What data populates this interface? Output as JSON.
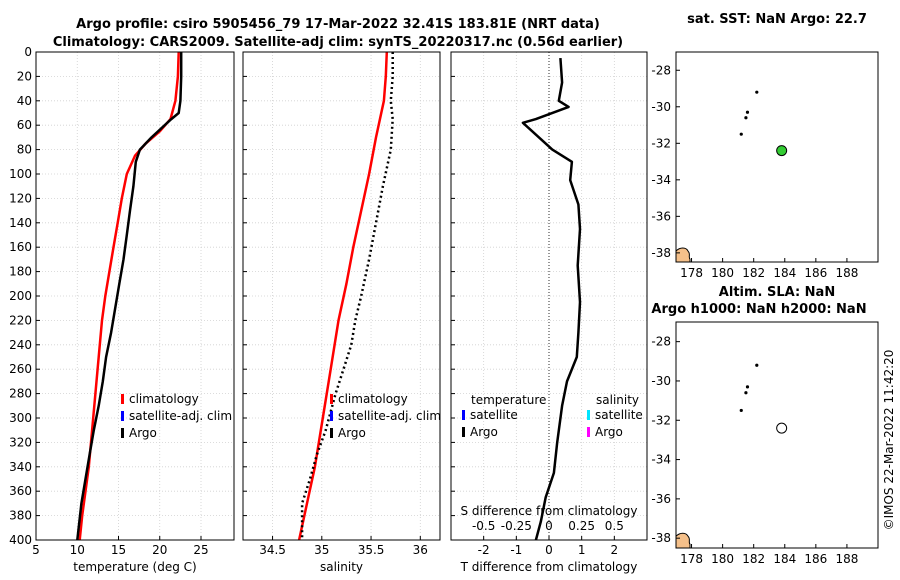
{
  "title": {
    "line1": "Argo profile: csiro 5905456_79 17-Mar-2022 32.41S 183.81E (NRT data)",
    "line2": "Climatology: CARS2009. Satellite-adj clim: synTS_20220317.nc (0.56d earlier)"
  },
  "credit": "©IMOS 22-Mar-2022 11:42:20",
  "colors": {
    "climatology": "#ff0000",
    "satellite_clim": "#0000ff",
    "argo": "#000000",
    "sat_salinity": "#00e5ff",
    "argo_salinity": "#ff00ff",
    "sst_marker": "#33cc33",
    "land": "#f5c08a"
  },
  "chart_data": [
    {
      "type": "line",
      "id": "temperature",
      "xlabel": "temperature (deg C)",
      "ylabel": "",
      "xlim": [
        5,
        29
      ],
      "ylim": [
        400,
        0
      ],
      "y_reversed": true,
      "xticks": [
        "5",
        "10",
        "15",
        "20",
        "25"
      ],
      "xtick_values": [
        5,
        10,
        15,
        20,
        25
      ],
      "yticks": [
        "0",
        "20",
        "40",
        "60",
        "80",
        "100",
        "120",
        "140",
        "160",
        "180",
        "200",
        "220",
        "240",
        "260",
        "280",
        "300",
        "320",
        "340",
        "360",
        "380",
        "400"
      ],
      "grid": true,
      "legend_position": "lower-center",
      "legend": [
        "climatology",
        "satellite-adj. clim",
        "Argo"
      ],
      "series": [
        {
          "name": "climatology",
          "style": "solid",
          "color": "#ff0000",
          "x": [
            22.3,
            22.2,
            21.9,
            21.3,
            20.0,
            18.3,
            17.0,
            16.0,
            15.4,
            14.9,
            14.4,
            13.9,
            13.4,
            13.0,
            12.6,
            12.2,
            11.8,
            11.4,
            11.0,
            10.6,
            10.3
          ],
          "y": [
            0,
            20,
            40,
            55,
            65,
            75,
            85,
            100,
            120,
            140,
            160,
            180,
            200,
            220,
            250,
            280,
            310,
            340,
            360,
            380,
            400
          ]
        },
        {
          "name": "Argo",
          "style": "solid",
          "color": "#000000",
          "x": [
            22.6,
            22.6,
            22.5,
            22.3,
            21.4,
            19.0,
            17.6,
            17.1,
            16.8,
            16.4,
            16.0,
            15.6,
            15.1,
            14.6,
            14.1,
            13.5,
            13.1,
            12.6,
            12.0,
            11.5,
            11.0,
            10.5,
            10.0
          ],
          "y": [
            0,
            20,
            40,
            50,
            55,
            70,
            80,
            90,
            110,
            130,
            150,
            170,
            190,
            210,
            230,
            250,
            270,
            290,
            310,
            330,
            350,
            370,
            400
          ]
        }
      ]
    },
    {
      "type": "line",
      "id": "salinity",
      "xlabel": "salinity",
      "xlim": [
        34.2,
        36.2
      ],
      "ylim": [
        400,
        0
      ],
      "y_reversed": true,
      "xticks": [
        "34.5",
        "35",
        "35.5",
        "36"
      ],
      "xtick_values": [
        34.5,
        35,
        35.5,
        36
      ],
      "grid": true,
      "legend_position": "lower-center",
      "legend": [
        "climatology",
        "satellite-adj. clim",
        "Argo"
      ],
      "series": [
        {
          "name": "climatology",
          "style": "solid",
          "color": "#ff0000",
          "x": [
            35.66,
            35.65,
            35.63,
            35.55,
            35.48,
            35.4,
            35.32,
            35.25,
            35.17,
            35.09,
            35.01,
            34.93,
            34.85,
            34.77
          ],
          "y": [
            0,
            20,
            40,
            70,
            100,
            130,
            160,
            190,
            220,
            260,
            300,
            340,
            370,
            400
          ]
        },
        {
          "name": "Argo",
          "style": "dotted",
          "color": "#000000",
          "x": [
            35.72,
            35.72,
            35.7,
            35.72,
            35.7,
            35.62,
            35.55,
            35.48,
            35.4,
            35.34,
            35.3,
            35.22,
            35.14,
            35.04,
            34.95,
            34.88,
            34.8,
            34.8
          ],
          "y": [
            0,
            20,
            40,
            55,
            80,
            110,
            140,
            170,
            200,
            220,
            240,
            260,
            280,
            310,
            330,
            350,
            370,
            400
          ]
        }
      ]
    },
    {
      "type": "line",
      "id": "difference",
      "xlabel": "T difference from climatology",
      "xlim": [
        -3,
        3
      ],
      "ylim": [
        400,
        0
      ],
      "y_reversed": true,
      "xticks": [
        "-2",
        "-1",
        "0",
        "1",
        "2"
      ],
      "xtick_values": [
        -2,
        -1,
        0,
        1,
        2
      ],
      "top_axis_label": "S difference from climatology",
      "top_ticks": [
        "-0.5",
        "-0.25",
        "0",
        "0.25",
        "0.5"
      ],
      "grid": true,
      "legend_headers": [
        "temperature",
        "salinity"
      ],
      "legend_temperature": [
        "satellite",
        "Argo"
      ],
      "legend_salinity": [
        "satellite",
        "Argo"
      ],
      "series": [
        {
          "name": "Argo",
          "style": "solid",
          "color": "#000000",
          "x": [
            0.35,
            0.4,
            0.3,
            0.6,
            -0.4,
            -0.8,
            0.1,
            0.7,
            0.65,
            0.9,
            0.95,
            0.88,
            0.95,
            0.9,
            0.85,
            0.55,
            0.4,
            0.25,
            0.15,
            -0.1,
            -0.25,
            -0.4
          ],
          "y": [
            5,
            25,
            40,
            45,
            55,
            58,
            80,
            90,
            105,
            125,
            145,
            175,
            205,
            230,
            250,
            270,
            290,
            320,
            345,
            365,
            385,
            400
          ]
        }
      ]
    },
    {
      "type": "scatter",
      "id": "map-sst",
      "title": "sat. SST: NaN Argo: 22.7",
      "xlim": [
        177,
        190
      ],
      "ylim": [
        -38.5,
        -27
      ],
      "xticks": [
        "178",
        "180",
        "182",
        "184",
        "186",
        "188"
      ],
      "yticks": [
        "-28",
        "-30",
        "-32",
        "-34",
        "-36",
        "-38"
      ],
      "track": {
        "x": [
          182.2,
          181.6,
          181.5,
          181.2
        ],
        "y": [
          -29.2,
          -30.3,
          -30.6,
          -31.5
        ]
      },
      "profile": {
        "x": 183.8,
        "y": -32.4,
        "fill": "#33cc33"
      }
    },
    {
      "type": "scatter",
      "id": "map-sla",
      "title_line1": "Altim. SLA: NaN",
      "title_line2": "Argo h1000: NaN h2000: NaN",
      "xlim": [
        177,
        190
      ],
      "ylim": [
        -38.5,
        -27
      ],
      "xticks": [
        "178",
        "180",
        "182",
        "184",
        "186",
        "188"
      ],
      "yticks": [
        "-28",
        "-30",
        "-32",
        "-34",
        "-36",
        "-38"
      ],
      "track": {
        "x": [
          182.2,
          181.6,
          181.5,
          181.2
        ],
        "y": [
          -29.2,
          -30.3,
          -30.6,
          -31.5
        ]
      },
      "profile": {
        "x": 183.8,
        "y": -32.4,
        "fill": "#ffffff"
      }
    }
  ]
}
